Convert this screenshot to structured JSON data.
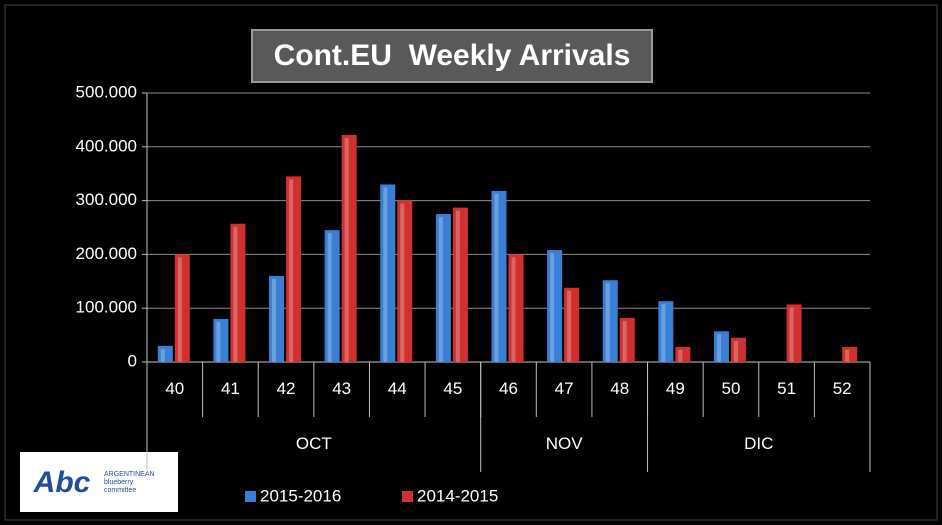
{
  "chart_data": {
    "type": "bar",
    "title": "Cont.EU  Weekly Arrivals",
    "categories": [
      "40",
      "41",
      "42",
      "43",
      "44",
      "45",
      "46",
      "47",
      "48",
      "49",
      "50",
      "51",
      "52"
    ],
    "group_labels": [
      "OCT",
      "NOV",
      "DIC"
    ],
    "group_sizes": [
      6,
      3,
      4
    ],
    "series": [
      {
        "name": "2015-2016",
        "color": "#3a7fd6",
        "values": [
          30000,
          80000,
          160000,
          245000,
          330000,
          275000,
          318000,
          208000,
          152000,
          113000,
          57000,
          null,
          null
        ]
      },
      {
        "name": "2014-2015",
        "color": "#d0302f",
        "values": [
          200000,
          257000,
          345000,
          422000,
          300000,
          287000,
          200000,
          138000,
          82000,
          28000,
          45000,
          107000,
          28000
        ]
      }
    ],
    "ylim": [
      0,
      500000
    ],
    "yticks": [
      0,
      {
        "value": 100000,
        "label": "100.000"
      },
      {
        "value": 200000,
        "label": "200.000"
      },
      {
        "value": 300000,
        "label": "300.000"
      },
      {
        "value": 400000,
        "label": "400.000"
      },
      {
        "value": 500000,
        "label": "500.000"
      }
    ],
    "grid": true,
    "legend": "bottom",
    "logo": {
      "mark": "Abc",
      "lines": [
        "ARGENTINEAN",
        "blueberry",
        "committee"
      ]
    }
  }
}
